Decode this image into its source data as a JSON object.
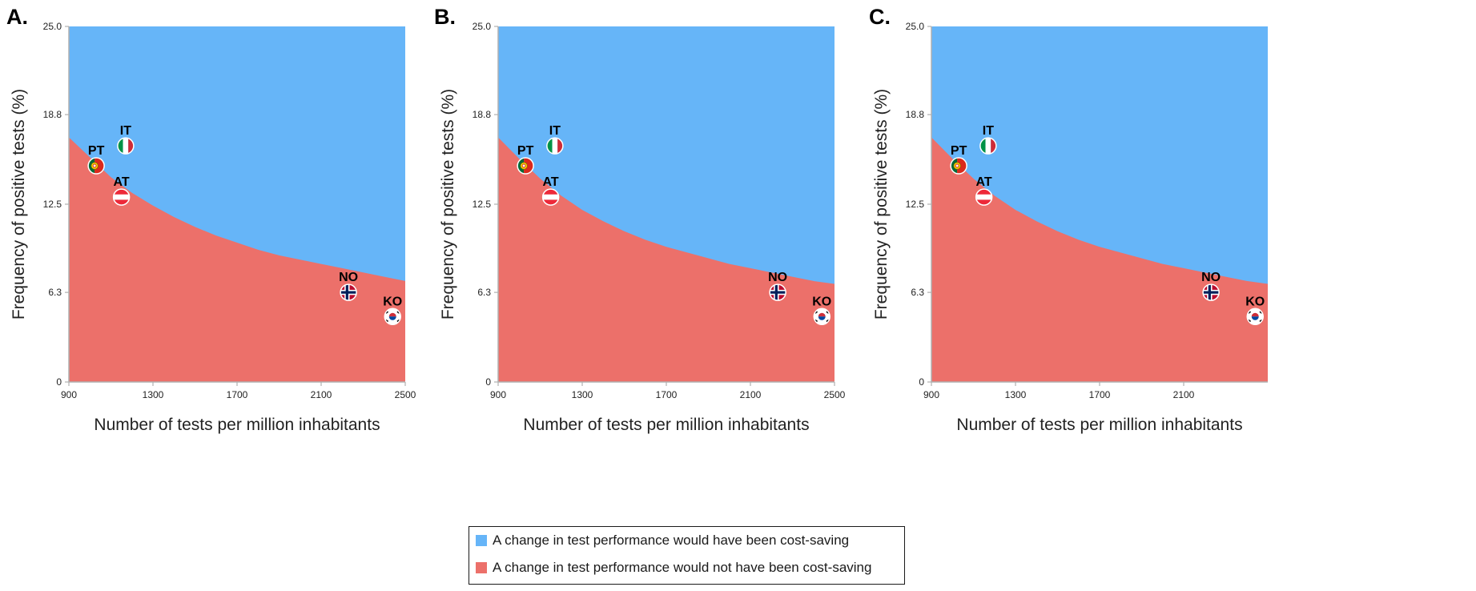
{
  "colors": {
    "cost_saving": "#66B5F8",
    "not_cost_saving": "#EC706A",
    "axis": "#b0b0b0",
    "text": "#222222"
  },
  "legend": {
    "items": [
      {
        "label": "A change in test performance would have been cost-saving",
        "color": "#66B5F8"
      },
      {
        "label": "A change in test performance would not have been cost-saving",
        "color": "#EC706A"
      }
    ]
  },
  "chart_data": [
    {
      "type": "area",
      "panel_label": "A.",
      "xlabel": "Number of tests per million inhabitants",
      "ylabel": "Frequency of positive tests (%)",
      "xlim": [
        900,
        2500
      ],
      "ylim": [
        0,
        25.0
      ],
      "x_ticks": [
        "900",
        "1300",
        "1700",
        "2100",
        "2500"
      ],
      "y_ticks": [
        "0",
        "6.3",
        "12.5",
        "18.8",
        "25.0"
      ],
      "grid": false,
      "threshold_curve": {
        "x": [
          900,
          1000,
          1100,
          1200,
          1300,
          1400,
          1500,
          1600,
          1700,
          1800,
          1900,
          2000,
          2100,
          2200,
          2300,
          2400,
          2500
        ],
        "y": [
          17.2,
          15.8,
          14.4,
          13.3,
          12.4,
          11.6,
          10.9,
          10.3,
          9.8,
          9.3,
          8.9,
          8.6,
          8.3,
          8.0,
          7.7,
          7.4,
          7.1
        ]
      },
      "countries": [
        {
          "code": "IT",
          "x": 1170,
          "y": 16.6,
          "flag": "italy"
        },
        {
          "code": "PT",
          "x": 1030,
          "y": 15.2,
          "flag": "portugal"
        },
        {
          "code": "AT",
          "x": 1150,
          "y": 13.0,
          "flag": "austria"
        },
        {
          "code": "NO",
          "x": 2230,
          "y": 6.3,
          "flag": "norway"
        },
        {
          "code": "KO",
          "x": 2440,
          "y": 4.6,
          "flag": "south-korea"
        }
      ]
    },
    {
      "type": "area",
      "panel_label": "B.",
      "xlabel": "Number of tests per million inhabitants",
      "ylabel": "Frequency of positive tests (%)",
      "xlim": [
        900,
        2500
      ],
      "ylim": [
        0,
        25.0
      ],
      "x_ticks": [
        "900",
        "1300",
        "1700",
        "2100",
        "2500"
      ],
      "y_ticks": [
        "0",
        "6.3",
        "12.5",
        "18.8",
        "25.0"
      ],
      "grid": false,
      "threshold_curve": {
        "x": [
          900,
          1000,
          1100,
          1200,
          1300,
          1400,
          1500,
          1600,
          1700,
          1800,
          1900,
          2000,
          2100,
          2200,
          2300,
          2400,
          2500
        ],
        "y": [
          17.2,
          15.7,
          14.3,
          13.1,
          12.1,
          11.3,
          10.6,
          10.0,
          9.5,
          9.1,
          8.7,
          8.3,
          8.0,
          7.7,
          7.4,
          7.1,
          6.9
        ]
      },
      "countries": [
        {
          "code": "IT",
          "x": 1170,
          "y": 16.6,
          "flag": "italy"
        },
        {
          "code": "PT",
          "x": 1030,
          "y": 15.2,
          "flag": "portugal"
        },
        {
          "code": "AT",
          "x": 1150,
          "y": 13.0,
          "flag": "austria"
        },
        {
          "code": "NO",
          "x": 2230,
          "y": 6.3,
          "flag": "norway"
        },
        {
          "code": "KO",
          "x": 2440,
          "y": 4.6,
          "flag": "south-korea"
        }
      ]
    },
    {
      "type": "area",
      "panel_label": "C.",
      "xlabel": "Number of tests per million inhabitants",
      "ylabel": "Frequency of positive tests (%)",
      "xlim": [
        900,
        2500
      ],
      "ylim": [
        0,
        25.0
      ],
      "x_ticks": [
        "900",
        "1300",
        "1700",
        "2100"
      ],
      "y_ticks": [
        "0",
        "6.3",
        "12.5",
        "18.8",
        "25.0"
      ],
      "grid": false,
      "threshold_curve": {
        "x": [
          900,
          1000,
          1100,
          1200,
          1300,
          1400,
          1500,
          1600,
          1700,
          1800,
          1900,
          2000,
          2100,
          2200,
          2300,
          2400,
          2500
        ],
        "y": [
          17.2,
          15.7,
          14.3,
          13.1,
          12.1,
          11.3,
          10.6,
          10.0,
          9.5,
          9.1,
          8.7,
          8.3,
          8.0,
          7.7,
          7.4,
          7.1,
          6.9
        ]
      },
      "countries": [
        {
          "code": "IT",
          "x": 1170,
          "y": 16.6,
          "flag": "italy"
        },
        {
          "code": "PT",
          "x": 1030,
          "y": 15.2,
          "flag": "portugal"
        },
        {
          "code": "AT",
          "x": 1150,
          "y": 13.0,
          "flag": "austria"
        },
        {
          "code": "NO",
          "x": 2230,
          "y": 6.3,
          "flag": "norway"
        },
        {
          "code": "KO",
          "x": 2440,
          "y": 4.6,
          "flag": "south-korea"
        }
      ]
    }
  ]
}
